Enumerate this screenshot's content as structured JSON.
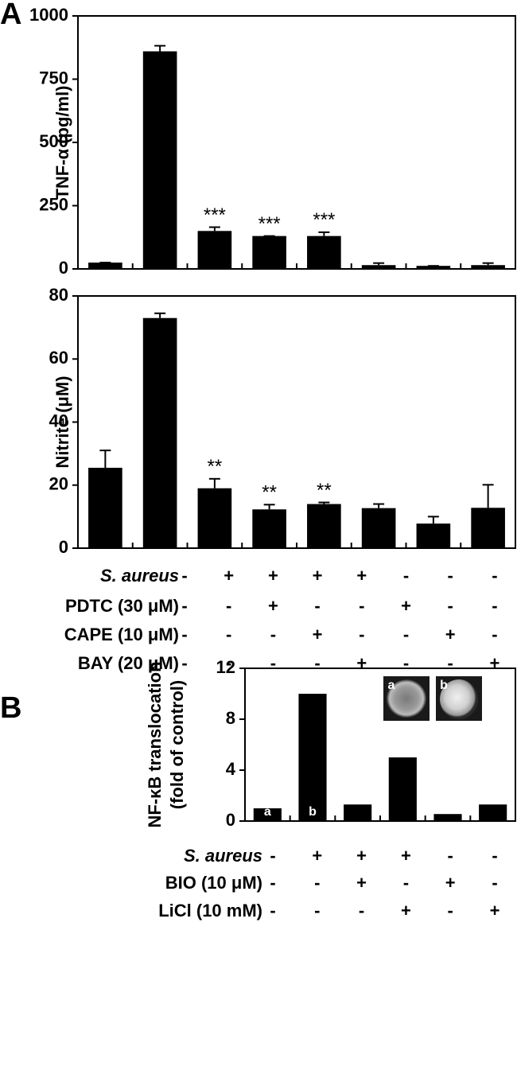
{
  "panel_labels": [
    "A",
    "B"
  ],
  "chart_data": [
    {
      "type": "bar",
      "ylabel": "TNF-α (pg/ml)",
      "categories": [
        null,
        null,
        null,
        null,
        null,
        null,
        null,
        null
      ],
      "values": [
        25,
        860,
        150,
        130,
        130,
        15,
        12,
        15
      ],
      "errors": [
        0,
        22,
        15,
        0,
        15,
        8,
        0,
        8
      ],
      "value_annotations": [
        null,
        null,
        "***",
        "***",
        "***",
        null,
        null,
        null
      ],
      "color": "#000000",
      "ylim": [
        0,
        1000
      ],
      "yticks": [
        0,
        250,
        500,
        750,
        1000
      ]
    },
    {
      "type": "bar",
      "ylabel": "Nitrite (μM)",
      "categories": [
        null,
        null,
        null,
        null,
        null,
        null,
        null,
        null
      ],
      "values": [
        25.5,
        73,
        19,
        12.3,
        14,
        12.7,
        7.8,
        12.8
      ],
      "errors": [
        5.5,
        1.5,
        3,
        1.5,
        0.5,
        1.3,
        2.2,
        7.3
      ],
      "value_annotations": [
        null,
        null,
        "**",
        "**",
        "**",
        null,
        null,
        null
      ],
      "color": "#000000",
      "ylim": [
        0,
        80
      ],
      "yticks": [
        0,
        20,
        40,
        60,
        80
      ]
    },
    {
      "type": "bar",
      "ylabel": [
        "NF-κB translocation",
        "(fold of control)"
      ],
      "categories": [
        null,
        null,
        null,
        null,
        null,
        null
      ],
      "values": [
        1,
        10,
        1.3,
        5,
        0.55,
        1.3
      ],
      "bar_labels": [
        "a",
        "b",
        null,
        null,
        null,
        null
      ],
      "inset_labels": [
        "a",
        "b"
      ],
      "color": "#000000",
      "ylim": [
        0,
        12
      ],
      "yticks": [
        0,
        4,
        8,
        12
      ]
    }
  ],
  "treatments_a": [
    {
      "name": "S. aureus",
      "signs": [
        "-",
        "+",
        "+",
        "+",
        "+",
        "-",
        "-",
        "-"
      ]
    },
    {
      "name": "PDTC (30 μM)",
      "signs": [
        "-",
        "-",
        "+",
        "-",
        "-",
        "+",
        "-",
        "-"
      ]
    },
    {
      "name": "CAPE (10 μM)",
      "signs": [
        "-",
        "-",
        "-",
        "+",
        "-",
        "-",
        "+",
        "-"
      ]
    },
    {
      "name": "BAY (20 μM)",
      "signs": [
        "-",
        "-",
        "-",
        "-",
        "+",
        "-",
        "-",
        "+"
      ]
    }
  ],
  "treatments_b": [
    {
      "name": "S. aureus",
      "signs": [
        "-",
        "+",
        "+",
        "+",
        "-",
        "-"
      ]
    },
    {
      "name": "BIO (10 μM)",
      "signs": [
        "-",
        "-",
        "+",
        "-",
        "+",
        "-"
      ]
    },
    {
      "name": "LiCl (10 mM)",
      "signs": [
        "-",
        "-",
        "-",
        "+",
        "-",
        "+"
      ]
    }
  ]
}
